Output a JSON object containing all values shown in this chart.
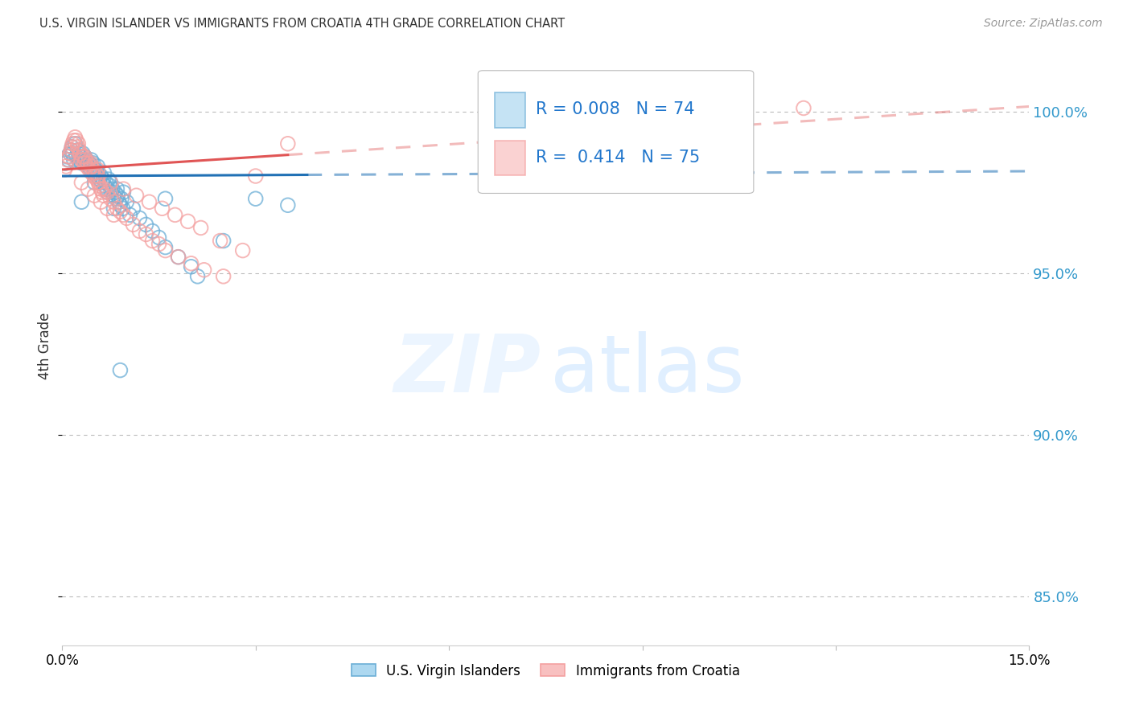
{
  "title": "U.S. VIRGIN ISLANDER VS IMMIGRANTS FROM CROATIA 4TH GRADE CORRELATION CHART",
  "source": "Source: ZipAtlas.com",
  "ylabel": "4th Grade",
  "ylabel_values": [
    85.0,
    90.0,
    95.0,
    100.0
  ],
  "xlim": [
    0.0,
    15.0
  ],
  "ylim": [
    83.5,
    102.0
  ],
  "legend_label1": "U.S. Virgin Islanders",
  "legend_label2": "Immigrants from Croatia",
  "R1": "0.008",
  "N1": "74",
  "R2": "0.414",
  "N2": "75",
  "blue_color": "#6baed6",
  "pink_color": "#f4a0a0",
  "blue_line_color": "#2171b5",
  "pink_line_color": "#e05555",
  "blue_line_y_intercept": 98.0,
  "blue_line_slope": 0.01,
  "pink_line_y_intercept": 98.2,
  "pink_line_slope": 0.13,
  "blue_solid_end": 3.8,
  "pink_solid_end": 3.5,
  "blue_x": [
    0.05,
    0.08,
    0.1,
    0.12,
    0.14,
    0.15,
    0.16,
    0.18,
    0.2,
    0.22,
    0.24,
    0.25,
    0.26,
    0.28,
    0.3,
    0.32,
    0.34,
    0.35,
    0.36,
    0.38,
    0.4,
    0.42,
    0.44,
    0.45,
    0.46,
    0.48,
    0.5,
    0.52,
    0.54,
    0.55,
    0.56,
    0.58,
    0.6,
    0.62,
    0.64,
    0.65,
    0.66,
    0.68,
    0.7,
    0.72,
    0.74,
    0.75,
    0.76,
    0.78,
    0.8,
    0.82,
    0.84,
    0.85,
    0.86,
    0.88,
    0.9,
    0.92,
    0.94,
    0.95,
    1.0,
    1.05,
    1.1,
    1.2,
    1.3,
    1.4,
    1.5,
    1.6,
    1.8,
    2.0,
    2.1,
    2.5,
    3.0,
    3.5,
    0.3,
    0.5,
    0.7,
    1.6,
    0.8,
    0.9
  ],
  "blue_y": [
    98.4,
    98.6,
    98.5,
    98.7,
    98.8,
    98.9,
    98.7,
    98.5,
    99.0,
    98.6,
    98.8,
    98.7,
    98.5,
    98.6,
    98.4,
    98.7,
    98.5,
    98.6,
    98.4,
    98.5,
    98.3,
    98.4,
    98.2,
    98.5,
    98.3,
    98.4,
    98.1,
    98.2,
    98.0,
    98.3,
    98.1,
    97.9,
    98.0,
    97.8,
    97.9,
    98.1,
    97.7,
    97.8,
    97.6,
    97.9,
    97.7,
    97.8,
    97.5,
    97.6,
    97.4,
    97.5,
    97.3,
    97.6,
    97.4,
    97.2,
    97.1,
    97.3,
    97.0,
    97.5,
    97.2,
    96.8,
    97.0,
    96.7,
    96.5,
    96.3,
    96.1,
    95.8,
    95.5,
    95.2,
    94.9,
    96.0,
    97.3,
    97.1,
    97.2,
    97.8,
    97.5,
    97.3,
    97.0,
    92.0
  ],
  "pink_x": [
    0.04,
    0.06,
    0.08,
    0.1,
    0.12,
    0.14,
    0.15,
    0.16,
    0.18,
    0.2,
    0.22,
    0.24,
    0.25,
    0.26,
    0.28,
    0.3,
    0.32,
    0.34,
    0.35,
    0.36,
    0.38,
    0.4,
    0.42,
    0.44,
    0.45,
    0.46,
    0.48,
    0.5,
    0.52,
    0.54,
    0.55,
    0.56,
    0.58,
    0.6,
    0.62,
    0.64,
    0.65,
    0.7,
    0.75,
    0.8,
    0.85,
    0.9,
    0.95,
    1.0,
    1.1,
    1.2,
    1.3,
    1.4,
    1.5,
    1.6,
    1.8,
    2.0,
    2.2,
    2.5,
    3.0,
    0.3,
    0.4,
    0.5,
    0.6,
    0.7,
    0.8,
    11.5,
    0.35,
    0.55,
    0.75,
    0.95,
    1.15,
    1.35,
    1.55,
    1.75,
    1.95,
    2.15,
    2.45,
    2.8,
    3.5
  ],
  "pink_y": [
    98.2,
    98.3,
    98.5,
    98.6,
    98.7,
    98.8,
    98.9,
    99.0,
    99.1,
    99.2,
    99.1,
    98.9,
    99.0,
    98.8,
    98.7,
    98.5,
    98.6,
    98.4,
    98.6,
    98.5,
    98.3,
    98.4,
    98.2,
    98.4,
    98.3,
    98.1,
    98.2,
    98.0,
    98.1,
    97.9,
    98.0,
    97.8,
    97.7,
    97.6,
    97.5,
    97.4,
    97.6,
    97.5,
    97.3,
    97.2,
    97.0,
    96.9,
    96.8,
    96.7,
    96.5,
    96.3,
    96.2,
    96.0,
    95.9,
    95.7,
    95.5,
    95.3,
    95.1,
    94.9,
    98.0,
    97.8,
    97.6,
    97.4,
    97.2,
    97.0,
    96.8,
    100.1,
    98.4,
    98.2,
    97.8,
    97.6,
    97.4,
    97.2,
    97.0,
    96.8,
    96.6,
    96.4,
    96.0,
    95.7,
    99.0
  ]
}
